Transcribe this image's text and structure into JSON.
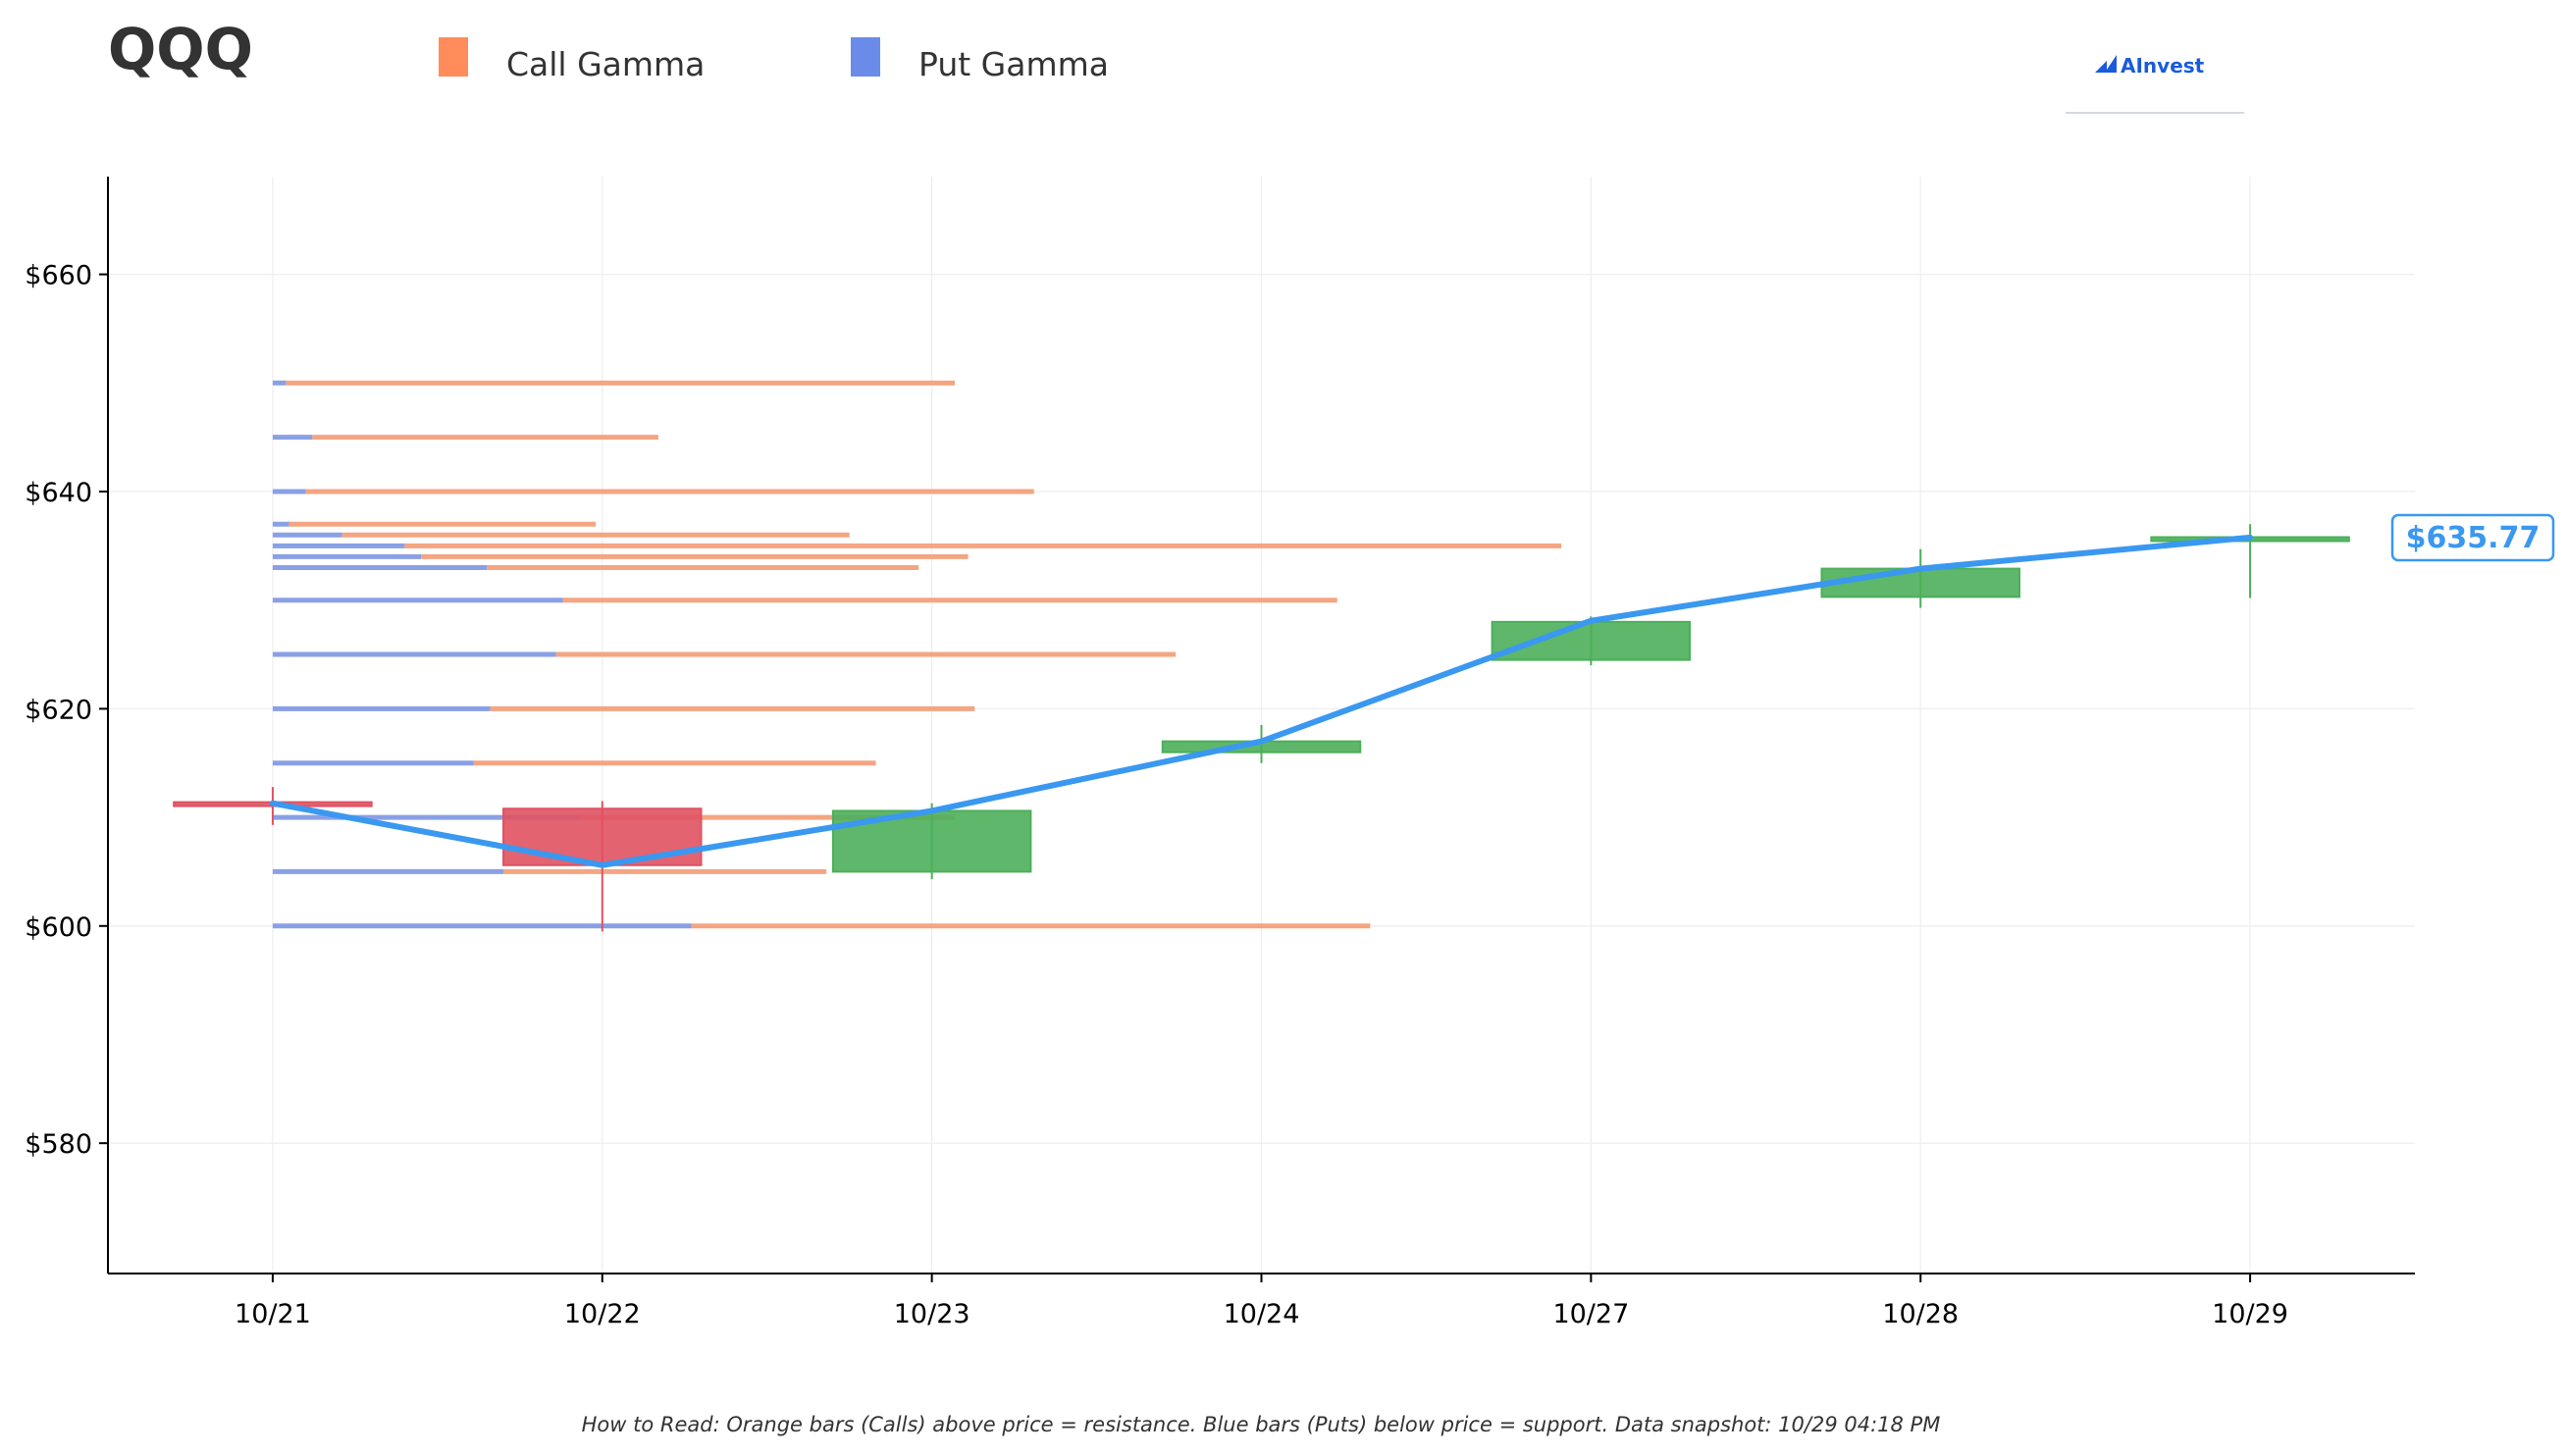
{
  "colors": {
    "call": "#f4a582",
    "call_legend": "#ff8c5a",
    "put": "#8aa0e6",
    "put_legend": "#6b8be8",
    "up": "#4caf5a",
    "down": "#e05262",
    "price_line": "#3a98f0",
    "axis": "#000000",
    "grid": "#eeeeee",
    "logo": "#1a5bdc"
  },
  "logo": {
    "text": "AInvest"
  },
  "chart_data": {
    "type": "candlestick-with-gamma",
    "title": "QQQ",
    "legend": {
      "placement": "top-left",
      "entries": [
        {
          "name": "Call Gamma",
          "color": "#ff8c5a"
        },
        {
          "name": "Put Gamma",
          "color": "#6b8be8"
        }
      ]
    },
    "ylim": [
      568,
      669
    ],
    "yticks": [
      580,
      600,
      620,
      640,
      660
    ],
    "ytick_labels": [
      "$580",
      "$600",
      "$620",
      "$640",
      "$660"
    ],
    "xlim": [
      -0.5,
      6.5
    ],
    "categories": [
      "10/21",
      "10/22",
      "10/23",
      "10/24",
      "10/27",
      "10/28",
      "10/29"
    ],
    "grid": true,
    "candles": [
      {
        "date": "10/21",
        "open": 611.4,
        "high": 612.8,
        "low": 609.3,
        "close": 611.2
      },
      {
        "date": "10/22",
        "open": 610.8,
        "high": 611.5,
        "low": 599.5,
        "close": 605.6
      },
      {
        "date": "10/23",
        "open": 605.0,
        "high": 611.3,
        "low": 604.3,
        "close": 610.6
      },
      {
        "date": "10/24",
        "open": 616.0,
        "high": 618.5,
        "low": 615.0,
        "close": 617.0
      },
      {
        "date": "10/27",
        "open": 624.5,
        "high": 628.5,
        "low": 624.0,
        "close": 628.0
      },
      {
        "date": "10/28",
        "open": 630.3,
        "high": 634.7,
        "low": 629.3,
        "close": 632.9
      },
      {
        "date": "10/29",
        "open": 635.6,
        "high": 637.0,
        "low": 630.2,
        "close": 635.8
      }
    ],
    "price_line": [
      611.3,
      605.6,
      610.6,
      617.0,
      628.1,
      632.9,
      635.77
    ],
    "current_price_label": "$635.77",
    "gamma": [
      {
        "strike": 650,
        "put": 0.04,
        "call": 2.03
      },
      {
        "strike": 645,
        "put": 0.12,
        "call": 1.05
      },
      {
        "strike": 640,
        "put": 0.1,
        "call": 2.21
      },
      {
        "strike": 637,
        "put": 0.05,
        "call": 0.93
      },
      {
        "strike": 636,
        "put": 0.21,
        "call": 1.54
      },
      {
        "strike": 635,
        "put": 0.4,
        "call": 3.51
      },
      {
        "strike": 634,
        "put": 0.45,
        "call": 1.66
      },
      {
        "strike": 633,
        "put": 0.65,
        "call": 1.31
      },
      {
        "strike": 630,
        "put": 0.88,
        "call": 2.35
      },
      {
        "strike": 625,
        "put": 0.86,
        "call": 1.88
      },
      {
        "strike": 620,
        "put": 0.66,
        "call": 1.47
      },
      {
        "strike": 615,
        "put": 0.61,
        "call": 1.22
      },
      {
        "strike": 610,
        "put": 0.93,
        "call": 1.14
      },
      {
        "strike": 605,
        "put": 0.7,
        "call": 0.98
      },
      {
        "strike": 600,
        "put": 1.27,
        "call": 2.06
      }
    ],
    "note": "How to Read: Orange bars (Calls) above price = resistance. Blue bars (Puts) below price = support. Data snapshot: 10/29 04:18 PM"
  }
}
